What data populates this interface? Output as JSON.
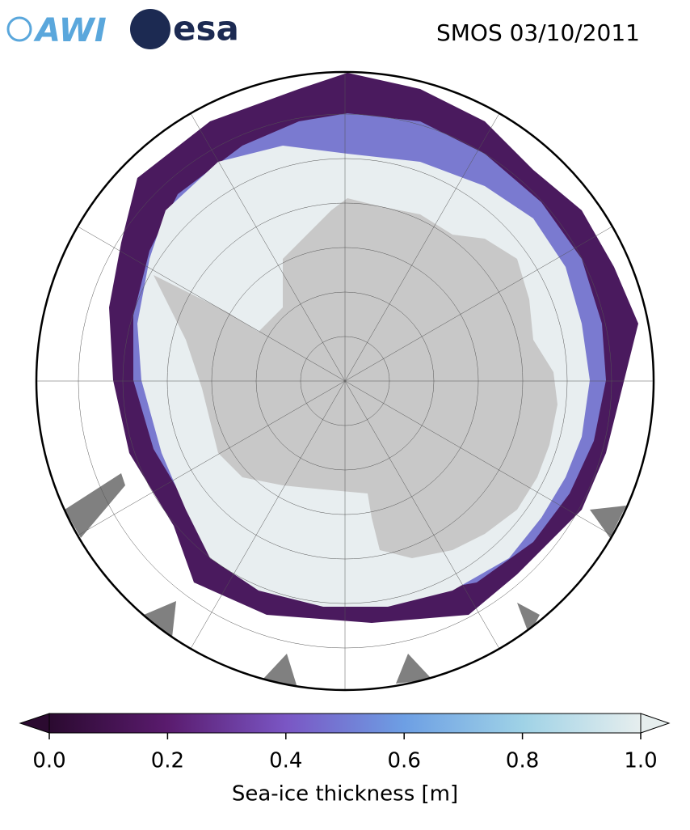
{
  "header": {
    "logos": [
      "AWI",
      "esa"
    ],
    "title": "SMOS 03/10/2011"
  },
  "colorbar": {
    "label": "Sea-ice thickness [m]",
    "lim": [
      0,
      1
    ],
    "ticks": [
      {
        "value": 0,
        "label": "0.0"
      },
      0.2,
      0.4,
      0.6,
      0.8,
      {
        "value": 1,
        "label": "1.0"
      }
    ],
    "colormap": [
      "#2b0a30",
      "#5a1b6e",
      "#7a56c4",
      "#6d9fe4",
      "#9fd2e6",
      "#e6eeee"
    ]
  }
}
